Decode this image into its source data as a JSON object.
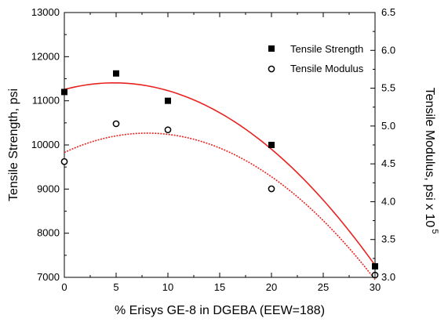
{
  "chart_data": {
    "type": "scatter",
    "xlabel": "% Erisys GE-8 in DGEBA (EEW=188)",
    "ylabel_left": "Tensile Strength, psi",
    "ylabel_right_prefix": "Tensile Modulus, psi x 10",
    "ylabel_right_exponent": "5",
    "xlim": [
      0,
      30
    ],
    "ylim_left": [
      7000,
      13000
    ],
    "ylim_right": [
      3.0,
      6.5
    ],
    "x_ticks": [
      "0",
      "5",
      "10",
      "15",
      "20",
      "25",
      "30"
    ],
    "y_ticks_left": [
      "7000",
      "8000",
      "9000",
      "10000",
      "11000",
      "12000",
      "13000"
    ],
    "y_ticks_right": [
      "3.0",
      "3.5",
      "4.0",
      "4.5",
      "5.0",
      "5.5",
      "6.0",
      "6.5"
    ],
    "grid": false,
    "legend_position": "top-right",
    "series": [
      {
        "name": "Tensile Strength",
        "axis": "left",
        "marker": "filled-square",
        "color": "#000000",
        "x": [
          0,
          5,
          10,
          20,
          30
        ],
        "y": [
          11200,
          11620,
          11000,
          10000,
          7250
        ],
        "fit_color": "#e8231f",
        "fit_style": "solid"
      },
      {
        "name": "Tensile Modulus",
        "axis": "right",
        "marker": "open-circle",
        "color": "#000000",
        "x": [
          0,
          5,
          10,
          20,
          30
        ],
        "y": [
          4.53,
          5.03,
          4.95,
          4.17,
          3.03
        ],
        "fit_color": "#e8231f",
        "fit_style": "dashed"
      }
    ]
  }
}
